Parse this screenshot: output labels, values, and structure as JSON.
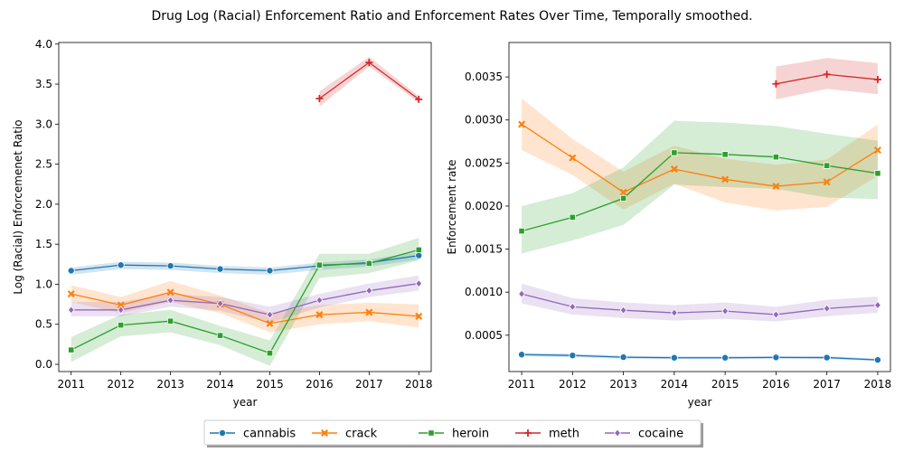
{
  "figure": {
    "suptitle": "Drug Log (Racial) Enforcement Ratio and Enforcement Rates Over Time, Temporally smoothed."
  },
  "colors": {
    "cannabis": "#1f77b4",
    "crack": "#ff7f0e",
    "heroin": "#2ca02c",
    "meth": "#d62728",
    "cocaine": "#9467bd"
  },
  "legend": {
    "placement": "bottom-center",
    "entries": [
      {
        "label": "cannabis",
        "marker": "circle"
      },
      {
        "label": "crack",
        "marker": "x"
      },
      {
        "label": "heroin",
        "marker": "square"
      },
      {
        "label": "meth",
        "marker": "plus"
      },
      {
        "label": "cocaine",
        "marker": "diamond"
      }
    ]
  },
  "chart_data": [
    {
      "type": "line",
      "title": "",
      "xlabel": "year",
      "ylabel": "Log (Racial) Enforcemenet Ratio",
      "x": [
        2011,
        2012,
        2013,
        2014,
        2015,
        2016,
        2017,
        2018
      ],
      "xlim": [
        2010.75,
        2018.25
      ],
      "ylim": [
        -0.09,
        4.02
      ],
      "xticks": [
        "2011",
        "2012",
        "2013",
        "2014",
        "2015",
        "2016",
        "2017",
        "2018"
      ],
      "yticks": [
        "0.0",
        "0.5",
        "1.0",
        "1.5",
        "2.0",
        "2.5",
        "3.0",
        "3.5",
        "4.0"
      ],
      "ytick_values": [
        0,
        0.5,
        1,
        1.5,
        2,
        2.5,
        3,
        3.5,
        4
      ],
      "grid": false,
      "series": [
        {
          "name": "cannabis",
          "values": [
            1.17,
            1.24,
            1.23,
            1.19,
            1.17,
            1.23,
            1.27,
            1.36
          ],
          "lower": [
            1.12,
            1.19,
            1.18,
            1.14,
            1.12,
            1.18,
            1.22,
            1.31
          ],
          "upper": [
            1.21,
            1.28,
            1.27,
            1.23,
            1.21,
            1.27,
            1.31,
            1.4
          ]
        },
        {
          "name": "crack",
          "values": [
            0.88,
            0.74,
            0.9,
            0.75,
            0.51,
            0.62,
            0.65,
            0.6
          ],
          "lower": [
            0.78,
            0.64,
            0.78,
            0.64,
            0.4,
            0.5,
            0.54,
            0.46
          ],
          "upper": [
            0.99,
            0.84,
            1.04,
            0.86,
            0.64,
            0.74,
            0.77,
            0.75
          ]
        },
        {
          "name": "heroin",
          "values": [
            0.18,
            0.49,
            0.54,
            0.36,
            0.14,
            1.24,
            1.26,
            1.43
          ],
          "lower": [
            0.03,
            0.35,
            0.4,
            0.24,
            -0.02,
            1.08,
            1.14,
            1.3
          ],
          "upper": [
            0.34,
            0.62,
            0.68,
            0.48,
            0.3,
            1.38,
            1.38,
            1.58
          ]
        },
        {
          "name": "meth",
          "values": [
            null,
            null,
            null,
            null,
            null,
            3.32,
            3.77,
            3.31
          ],
          "lower": [
            null,
            null,
            null,
            null,
            null,
            3.22,
            3.72,
            3.27
          ],
          "upper": [
            null,
            null,
            null,
            null,
            null,
            3.41,
            3.84,
            3.35
          ]
        },
        {
          "name": "cocaine",
          "values": [
            0.68,
            0.68,
            0.8,
            0.76,
            0.62,
            0.8,
            0.92,
            1.01
          ],
          "lower": [
            0.6,
            0.6,
            0.72,
            0.67,
            0.52,
            0.71,
            0.84,
            0.92
          ],
          "upper": [
            0.78,
            0.78,
            0.88,
            0.84,
            0.72,
            0.88,
            1.01,
            1.11
          ]
        }
      ]
    },
    {
      "type": "line",
      "title": "",
      "xlabel": "year",
      "ylabel": "Enforcement rate",
      "x": [
        2011,
        2012,
        2013,
        2014,
        2015,
        2016,
        2017,
        2018
      ],
      "xlim": [
        2010.75,
        2018.25
      ],
      "ylim": [
        7.8e-05,
        0.0039
      ],
      "xticks": [
        "2011",
        "2012",
        "2013",
        "2014",
        "2015",
        "2016",
        "2017",
        "2018"
      ],
      "yticks": [
        "0.0005",
        "0.0010",
        "0.0015",
        "0.0020",
        "0.0025",
        "0.0030",
        "0.0035"
      ],
      "ytick_values": [
        0.0005,
        0.001,
        0.0015,
        0.002,
        0.0025,
        0.003,
        0.0035
      ],
      "grid": false,
      "series": [
        {
          "name": "cannabis",
          "values": [
            0.000275,
            0.000265,
            0.000245,
            0.000238,
            0.000238,
            0.000242,
            0.00024,
            0.000213
          ],
          "lower": [
            0.000255,
            0.000245,
            0.000228,
            0.000222,
            0.000222,
            0.000226,
            0.000224,
            0.000198
          ],
          "upper": [
            0.000295,
            0.000285,
            0.000262,
            0.000255,
            0.000255,
            0.000258,
            0.000256,
            0.000228
          ]
        },
        {
          "name": "crack",
          "values": [
            0.00295,
            0.00256,
            0.00216,
            0.00243,
            0.00231,
            0.00223,
            0.00228,
            0.00265
          ],
          "lower": [
            0.00265,
            0.00236,
            0.00196,
            0.00226,
            0.00204,
            0.00195,
            0.00199,
            0.00235
          ],
          "upper": [
            0.00325,
            0.00278,
            0.0024,
            0.0027,
            0.00255,
            0.00248,
            0.00254,
            0.00295
          ]
        },
        {
          "name": "heroin",
          "values": [
            0.00171,
            0.00187,
            0.00209,
            0.00262,
            0.0026,
            0.00257,
            0.00247,
            0.00238
          ],
          "lower": [
            0.00145,
            0.0016,
            0.00178,
            0.00225,
            0.00222,
            0.0022,
            0.0021,
            0.00208
          ],
          "upper": [
            0.002,
            0.00215,
            0.00245,
            0.00299,
            0.00297,
            0.00293,
            0.00284,
            0.00276
          ]
        },
        {
          "name": "meth",
          "values": [
            null,
            null,
            null,
            null,
            null,
            0.00342,
            0.00353,
            0.00347
          ],
          "lower": [
            null,
            null,
            null,
            null,
            null,
            0.00324,
            0.00336,
            0.0033
          ],
          "upper": [
            null,
            null,
            null,
            null,
            null,
            0.00362,
            0.00372,
            0.00366
          ]
        },
        {
          "name": "cocaine",
          "values": [
            0.00098,
            0.00083,
            0.00079,
            0.00076,
            0.00078,
            0.00074,
            0.00081,
            0.00085
          ],
          "lower": [
            0.00087,
            0.00074,
            0.0007,
            0.00067,
            0.00069,
            0.00066,
            0.00072,
            0.00076
          ],
          "upper": [
            0.0011,
            0.00093,
            0.00088,
            0.00085,
            0.00088,
            0.00083,
            0.00091,
            0.00095
          ]
        }
      ]
    }
  ]
}
